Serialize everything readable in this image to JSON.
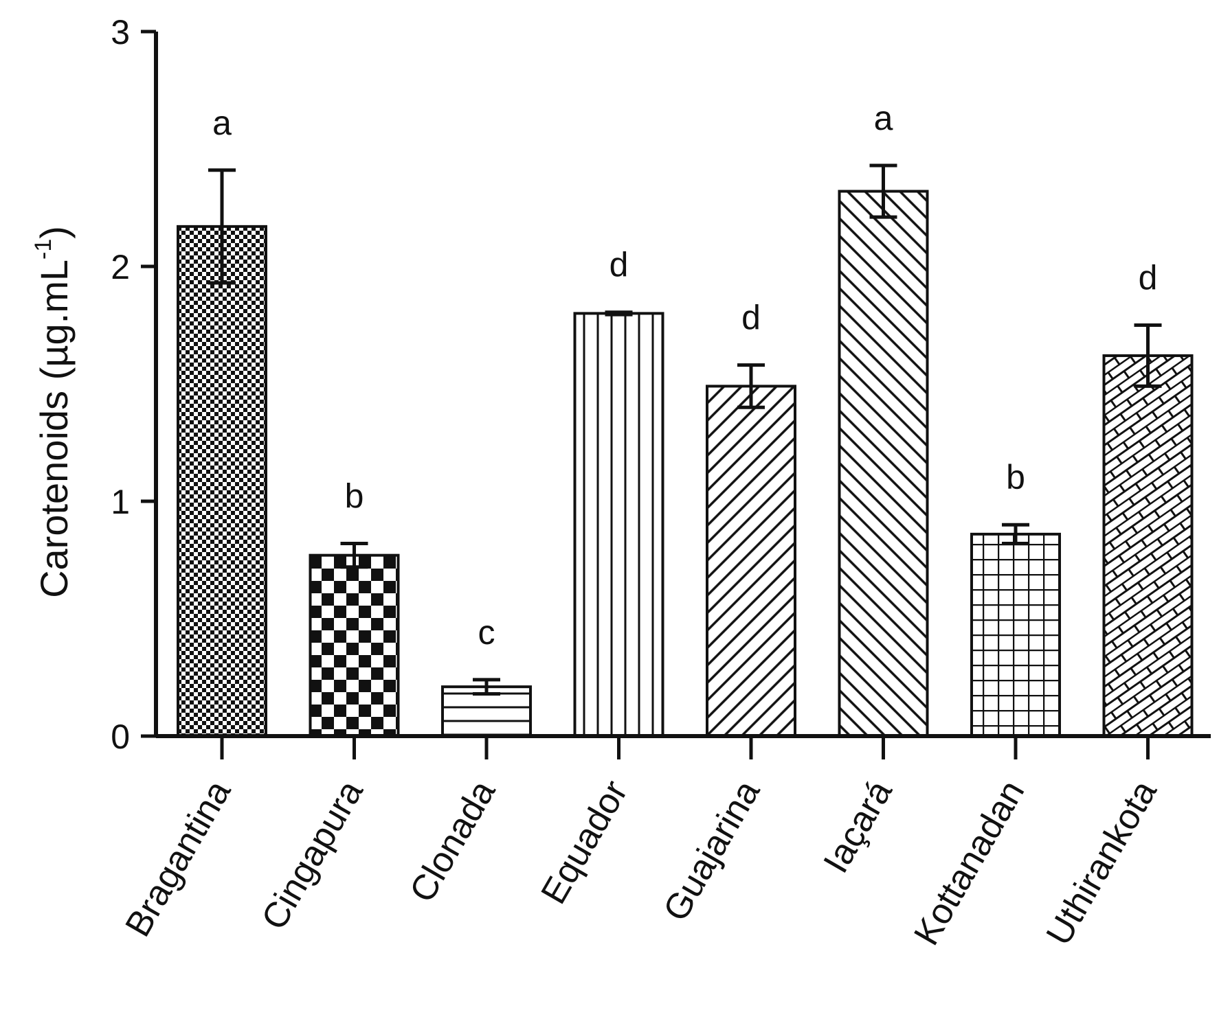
{
  "chart_data": {
    "type": "bar",
    "title": "",
    "xlabel": "",
    "ylabel": "Carotenoids (µg.mL",
    "ylabel_superscript": "-1",
    "ylabel_close": ")",
    "ylim": [
      0,
      3
    ],
    "yticks": [
      "0",
      "1",
      "2",
      "3"
    ],
    "grid": false,
    "categories": [
      "Bragantina",
      "Cingapura",
      "Clonada",
      "Equador",
      "Guajarina",
      "Iaçará",
      "Kottanadan",
      "Uthirankota"
    ],
    "values": [
      2.17,
      0.77,
      0.21,
      1.8,
      1.49,
      2.32,
      0.86,
      1.62
    ],
    "errors": [
      0.24,
      0.05,
      0.03,
      0.005,
      0.09,
      0.11,
      0.04,
      0.13
    ],
    "significance_letters": [
      "a",
      "b",
      "c",
      "d",
      "d",
      "a",
      "b",
      "d"
    ],
    "patterns": [
      "fine-checker",
      "coarse-checker",
      "horizontal-lines",
      "vertical-lines",
      "diagonal-forward",
      "diagonal-back",
      "grid",
      "brick-diagonal"
    ],
    "colors": {
      "ink": "#111111",
      "fill_bg": "#ffffff"
    }
  }
}
